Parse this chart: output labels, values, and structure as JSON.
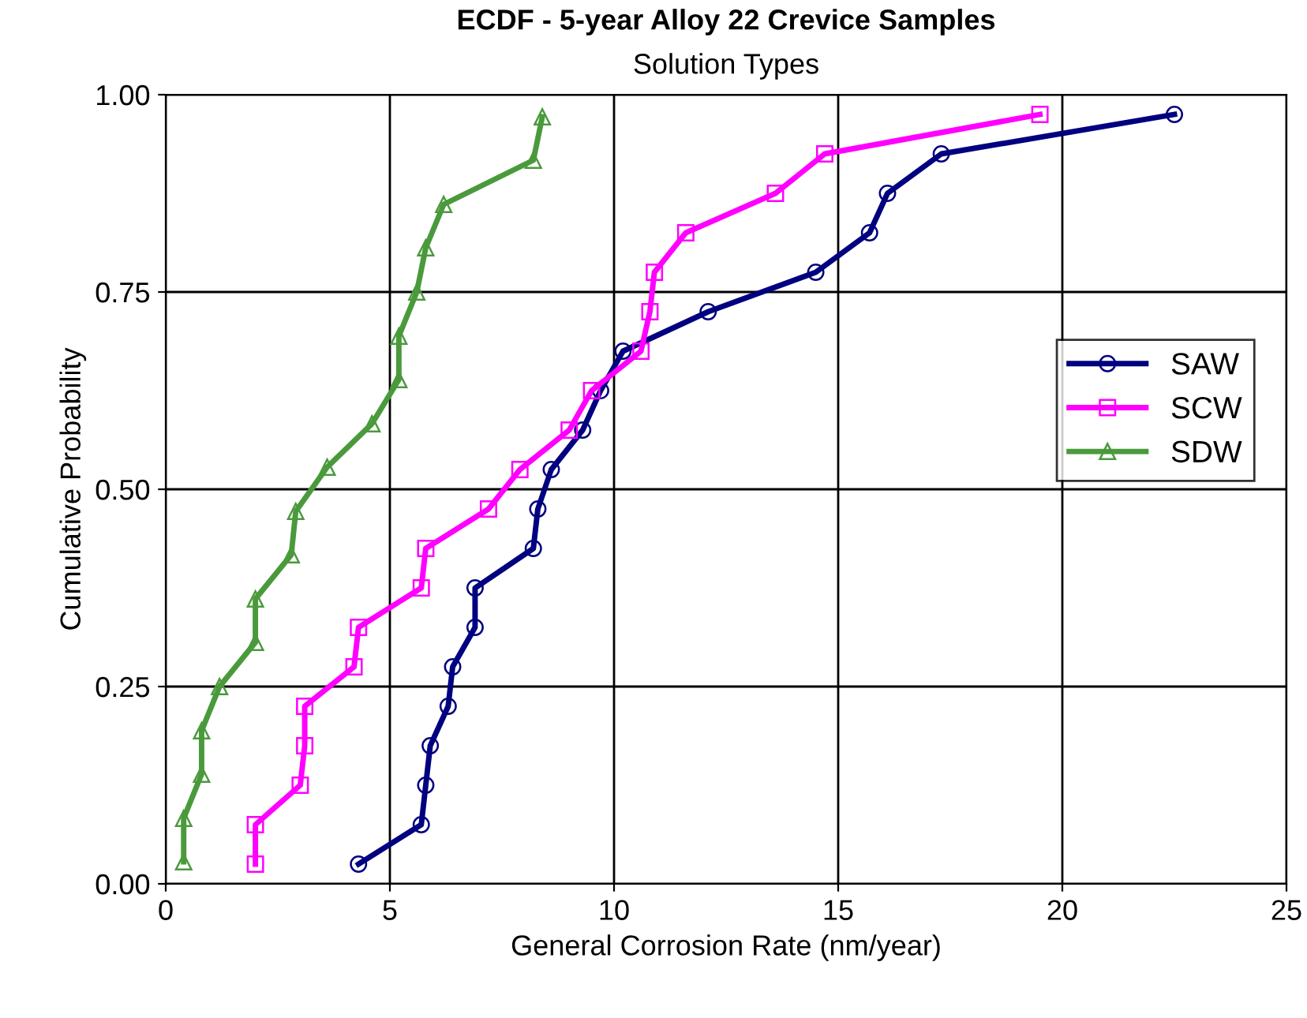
{
  "chart_data": {
    "type": "line",
    "title": "ECDF - 5-year Alloy 22 Crevice Samples",
    "subtitle": "Solution Types",
    "xlabel": "General Corrosion Rate (nm/year)",
    "ylabel": "Cumulative Probability",
    "xlim": [
      0,
      25
    ],
    "xticks": [
      0,
      5,
      10,
      15,
      20,
      25
    ],
    "ylim": [
      0,
      1
    ],
    "yticks": [
      {
        "value": 0,
        "label": "0.00"
      },
      {
        "value": 0.25,
        "label": "0.25"
      },
      {
        "value": 0.5,
        "label": "0.50"
      },
      {
        "value": 0.75,
        "label": "0.75"
      },
      {
        "value": 1,
        "label": "1.00"
      }
    ],
    "grid": true,
    "legend": "right",
    "line_style": "solid",
    "series": [
      {
        "name": "SAW",
        "color": "#000080",
        "marker": "circle",
        "x": [
          4.3,
          5.7,
          5.8,
          5.9,
          6.3,
          6.4,
          6.9,
          6.9,
          8.2,
          8.3,
          8.6,
          9.3,
          9.7,
          10.2,
          12.1,
          14.5,
          15.7,
          16.1,
          17.3,
          22.5
        ],
        "values": [
          0.025,
          0.075,
          0.125,
          0.175,
          0.225,
          0.275,
          0.325,
          0.375,
          0.425,
          0.475,
          0.525,
          0.575,
          0.625,
          0.675,
          0.725,
          0.775,
          0.825,
          0.875,
          0.925,
          0.975
        ]
      },
      {
        "name": "SCW",
        "color": "#ff00ff",
        "marker": "square",
        "x": [
          2.0,
          2.0,
          3.0,
          3.1,
          3.1,
          4.2,
          4.3,
          5.7,
          5.8,
          7.2,
          7.9,
          9.0,
          9.5,
          10.6,
          10.8,
          10.9,
          11.6,
          13.6,
          14.7,
          19.5
        ],
        "values": [
          0.025,
          0.075,
          0.125,
          0.175,
          0.225,
          0.275,
          0.325,
          0.375,
          0.425,
          0.475,
          0.525,
          0.575,
          0.625,
          0.675,
          0.725,
          0.775,
          0.825,
          0.875,
          0.925,
          0.975
        ]
      },
      {
        "name": "SDW",
        "color": "#4a9a3c",
        "marker": "triangle",
        "x": [
          0.4,
          0.4,
          0.8,
          0.8,
          1.2,
          2.0,
          2.0,
          2.8,
          2.9,
          3.6,
          4.6,
          5.2,
          5.2,
          5.6,
          5.8,
          6.2,
          8.2,
          8.4
        ],
        "values": [
          0.028,
          0.083,
          0.139,
          0.194,
          0.25,
          0.306,
          0.361,
          0.417,
          0.472,
          0.528,
          0.583,
          0.639,
          0.694,
          0.75,
          0.806,
          0.861,
          0.917,
          0.972
        ]
      }
    ]
  }
}
